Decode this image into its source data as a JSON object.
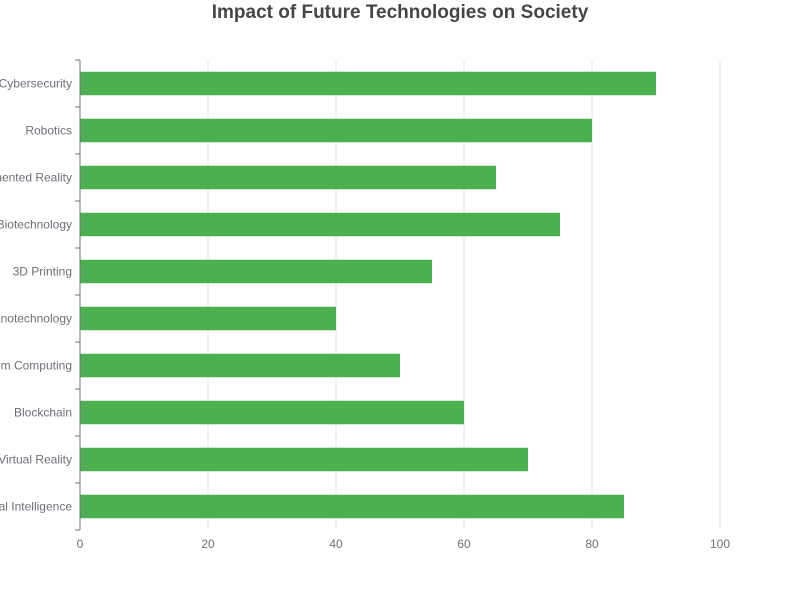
{
  "chart_data": {
    "type": "bar",
    "orientation": "horizontal",
    "title": "Impact of Future Technologies on Society",
    "categories": [
      "Cybersecurity",
      "Robotics",
      "Augmented Reality",
      "Biotechnology",
      "3D Printing",
      "Nanotechnology",
      "Quantum Computing",
      "Blockchain",
      "Virtual Reality",
      "Artificial Intelligence"
    ],
    "values": [
      90,
      80,
      65,
      75,
      55,
      40,
      50,
      60,
      70,
      85
    ],
    "xlim": [
      0,
      100
    ],
    "xticks": [
      0,
      20,
      40,
      60,
      80,
      100
    ],
    "xlabel": "",
    "ylabel": "",
    "grid": "vertical",
    "legend": "none",
    "colors": {
      "bar": "#4caf50",
      "grid": "#e6e6e6",
      "axis": "#6e7079",
      "label": "#6e7079"
    }
  }
}
